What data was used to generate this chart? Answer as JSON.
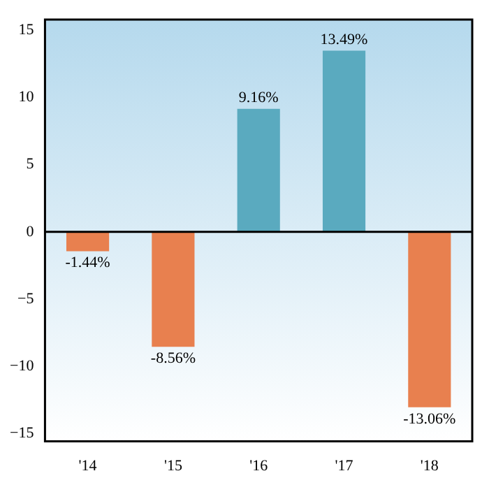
{
  "chart_data": {
    "type": "bar",
    "categories": [
      "'14",
      "'15",
      "'16",
      "'17",
      "'18"
    ],
    "values": [
      -1.44,
      -8.56,
      9.16,
      13.49,
      -13.06
    ],
    "value_labels": [
      "-1.44%",
      "-8.56%",
      "9.16%",
      "13.49%",
      "-13.06%"
    ],
    "colors": [
      "#e8804f",
      "#e8804f",
      "#5aaabf",
      "#5aaabf",
      "#e8804f"
    ],
    "ylim": [
      -15.6,
      15.8
    ],
    "yticks": [
      -15,
      -10,
      -5,
      0,
      5,
      10,
      15
    ],
    "ref_lines": [
      {
        "axis": "y",
        "value": 0,
        "color": "#000000"
      }
    ],
    "grid": false,
    "legend": false
  }
}
